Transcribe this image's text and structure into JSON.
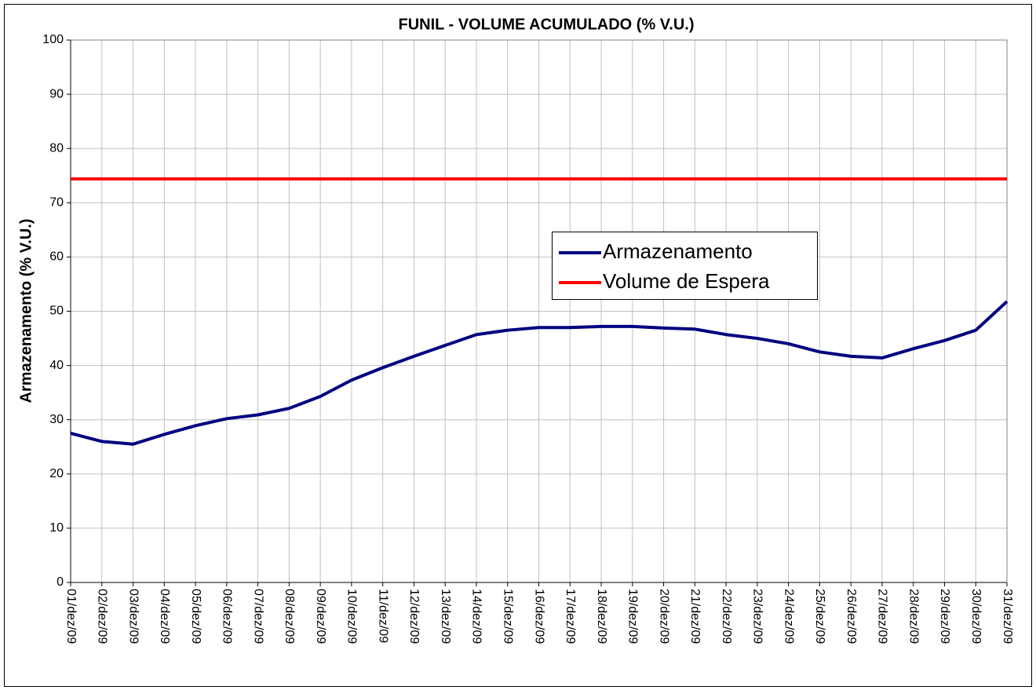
{
  "chart_data": {
    "type": "line",
    "title": "FUNIL - VOLUME ACUMULADO (% V.U.)",
    "y_label": "Armazenamento (% V.U.)",
    "categories": [
      "01/dez/09",
      "02/dez/09",
      "03/dez/09",
      "04/dez/09",
      "05/dez/09",
      "06/dez/09",
      "07/dez/09",
      "08/dez/09",
      "09/dez/09",
      "10/dez/09",
      "11/dez/09",
      "12/dez/09",
      "13/dez/09",
      "14/dez/09",
      "15/dez/09",
      "16/dez/09",
      "17/dez/09",
      "18/dez/09",
      "19/dez/09",
      "20/dez/09",
      "21/dez/09",
      "22/dez/09",
      "23/dez/09",
      "24/dez/09",
      "25/dez/09",
      "26/dez/09",
      "27/dez/09",
      "28/dez/09",
      "29/dez/09",
      "30/dez/09",
      "31/dez/09"
    ],
    "series": [
      {
        "name": "Armazenamento",
        "color": "#000080",
        "values": [
          27.5,
          26.0,
          25.5,
          27.3,
          28.9,
          30.2,
          30.9,
          32.1,
          34.3,
          37.3,
          39.6,
          41.7,
          43.7,
          45.7,
          46.5,
          47.0,
          47.0,
          47.2,
          47.2,
          46.9,
          46.7,
          45.7,
          45.0,
          44.0,
          42.5,
          41.7,
          41.4,
          43.1,
          44.6,
          46.5,
          51.8
        ]
      },
      {
        "name": "Volume de Espera",
        "color": "#ff0000",
        "values": [
          74.4,
          74.4,
          74.4,
          74.4,
          74.4,
          74.4,
          74.4,
          74.4,
          74.4,
          74.4,
          74.4,
          74.4,
          74.4,
          74.4,
          74.4,
          74.4,
          74.4,
          74.4,
          74.4,
          74.4,
          74.4,
          74.4,
          74.4,
          74.4,
          74.4,
          74.4,
          74.4,
          74.4,
          74.4,
          74.4,
          74.4
        ]
      }
    ],
    "ylim": [
      0,
      100
    ],
    "yticks": [
      0,
      10,
      20,
      30,
      40,
      50,
      60,
      70,
      80,
      90,
      100
    ],
    "grid": true
  }
}
